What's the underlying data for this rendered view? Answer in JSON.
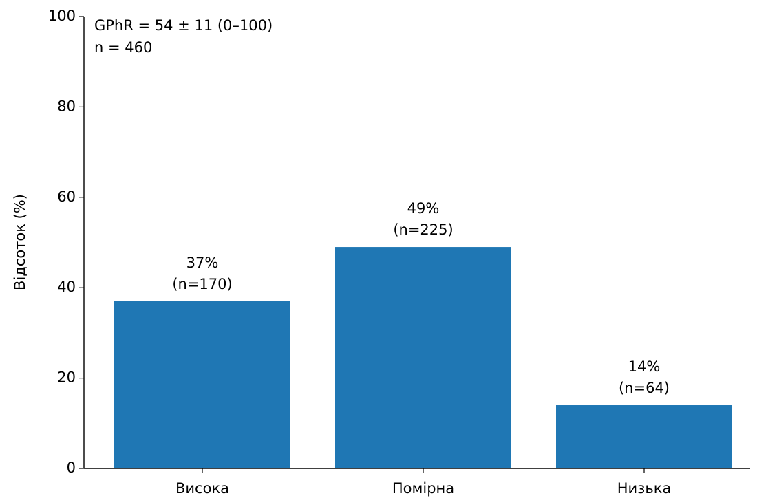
{
  "chart_data": {
    "type": "bar",
    "y_label": "Відсоток (%)",
    "annotations": [
      "GPhR = 54 ± 11 (0–100)",
      "n = 460"
    ],
    "categories": [
      "Висока",
      "Помірна",
      "Низька"
    ],
    "values": [
      37,
      49,
      14
    ],
    "value_labels": [
      "37%",
      "49%",
      "14%"
    ],
    "count_labels": [
      "(n=170)",
      "(n=225)",
      "(n=64)"
    ],
    "color": "#1f77b4",
    "ylim": [
      0,
      100
    ],
    "yticks": [
      0,
      20,
      40,
      60,
      80,
      100
    ],
    "grid": false
  }
}
